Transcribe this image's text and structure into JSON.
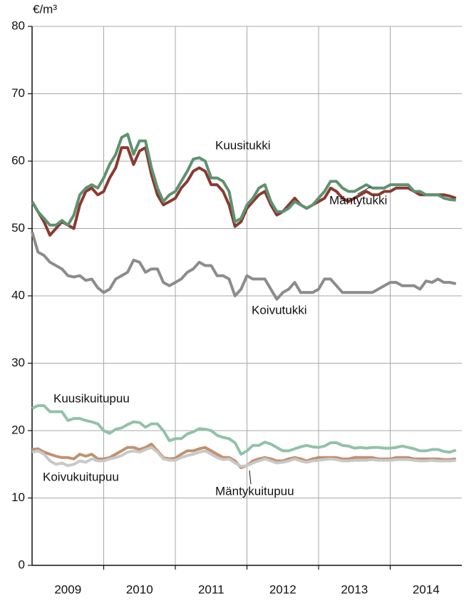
{
  "chart_data": {
    "type": "line",
    "y_unit": "€/m³",
    "x": [
      2009,
      2009.083,
      2009.167,
      2009.25,
      2009.333,
      2009.417,
      2009.5,
      2009.583,
      2009.667,
      2009.75,
      2009.833,
      2009.917,
      2010,
      2010.083,
      2010.167,
      2010.25,
      2010.333,
      2010.417,
      2010.5,
      2010.583,
      2010.667,
      2010.75,
      2010.833,
      2010.917,
      2011,
      2011.083,
      2011.167,
      2011.25,
      2011.333,
      2011.417,
      2011.5,
      2011.583,
      2011.667,
      2011.75,
      2011.833,
      2011.917,
      2012,
      2012.083,
      2012.167,
      2012.25,
      2012.333,
      2012.417,
      2012.5,
      2012.583,
      2012.667,
      2012.75,
      2012.833,
      2012.917,
      2013,
      2013.083,
      2013.167,
      2013.25,
      2013.333,
      2013.417,
      2013.5,
      2013.583,
      2013.667,
      2013.75,
      2013.833,
      2013.917,
      2014,
      2014.083,
      2014.167,
      2014.25,
      2014.333,
      2014.417,
      2014.5,
      2014.583,
      2014.667,
      2014.75,
      2014.833,
      2014.917
    ],
    "series": [
      {
        "name": "Kuusitukki",
        "color": "#5e9270",
        "values": [
          54,
          52.5,
          51.5,
          50.5,
          50.5,
          51.2,
          50.5,
          52,
          55,
          56,
          56.5,
          56,
          57.5,
          59.5,
          61,
          63.5,
          64,
          61,
          63,
          63,
          59,
          56,
          54,
          55,
          55.5,
          57,
          58.5,
          60.3,
          60.5,
          60,
          57.5,
          57.5,
          57,
          55.5,
          51,
          51.5,
          53.5,
          54.5,
          56,
          56.5,
          54,
          52.5,
          52.5,
          53,
          54,
          53.5,
          53,
          53.5,
          54.5,
          55.5,
          57,
          57,
          56,
          55.5,
          55.5,
          56,
          56.5,
          56,
          56,
          56,
          56.5,
          56.5,
          56.5,
          56.5,
          55.5,
          55.5,
          55,
          55,
          55,
          54.5,
          54.3,
          54.2
        ]
      },
      {
        "name": "Mäntytukki",
        "color": "#8a3a30",
        "values": [
          54,
          52.5,
          51,
          49,
          50,
          51,
          50.5,
          50,
          53.5,
          55.5,
          56,
          55,
          55.5,
          57.5,
          59,
          62,
          62,
          59.5,
          61.5,
          62,
          58,
          55,
          53.5,
          54,
          54.5,
          56,
          57,
          58.5,
          59,
          58.5,
          56.5,
          56.5,
          55.5,
          53.5,
          50.3,
          51,
          53,
          54,
          55,
          55.5,
          53.5,
          52,
          52.5,
          53.5,
          54.5,
          53.5,
          53,
          53.5,
          54,
          54.5,
          56,
          55.5,
          54.5,
          54,
          54.5,
          55,
          55.5,
          55,
          55,
          55.5,
          55.5,
          56,
          56,
          56,
          55.5,
          55,
          55,
          55,
          55,
          55,
          54.8,
          54.5
        ]
      },
      {
        "name": "Koivutukki",
        "color": "#8c8c8c",
        "values": [
          49.5,
          46.5,
          46,
          45,
          44.5,
          44,
          43,
          42.8,
          43,
          42.3,
          42.5,
          41.2,
          40.5,
          41,
          42.5,
          43,
          43.5,
          45.3,
          45,
          43.5,
          44,
          44,
          42,
          41.5,
          42,
          42.5,
          43.5,
          44,
          45,
          44.5,
          44.5,
          43,
          43,
          42.5,
          40,
          41,
          43,
          42.5,
          42.5,
          42.5,
          41,
          39.5,
          40.5,
          41,
          42,
          40.5,
          40.5,
          40.5,
          41,
          42.5,
          42.5,
          41.5,
          40.5,
          40.5,
          40.5,
          40.5,
          40.5,
          40.5,
          41,
          41.5,
          42,
          42,
          41.5,
          41.5,
          41.5,
          41,
          42.2,
          42,
          42.5,
          42,
          42,
          41.8
        ]
      },
      {
        "name": "Kuusikuitupuu",
        "color": "#92c2a8",
        "values": [
          23.3,
          23.7,
          23.7,
          22.8,
          22.8,
          22.8,
          21.5,
          21.8,
          21.8,
          21.5,
          21.3,
          21,
          20,
          19.6,
          20.2,
          20.4,
          20.9,
          21.3,
          21.2,
          20.5,
          21,
          21,
          20,
          18.5,
          18.8,
          18.8,
          19.5,
          19.8,
          20.3,
          20.2,
          20,
          19.3,
          19,
          18.8,
          18.2,
          16.5,
          17,
          17.8,
          17.8,
          18.3,
          18,
          17.5,
          17,
          17,
          17.3,
          17.6,
          17.8,
          17.6,
          17.5,
          17.7,
          18.2,
          18.2,
          17.8,
          17.7,
          17.4,
          17.5,
          17.4,
          17.5,
          17.5,
          17.4,
          17.4,
          17.5,
          17.7,
          17.5,
          17.3,
          17,
          17,
          17.2,
          17.2,
          16.9,
          16.8,
          17.1
        ]
      },
      {
        "name": "Mäntykuitupuu",
        "color": "#c2906f",
        "values": [
          17.2,
          17.3,
          16.8,
          16.5,
          16.2,
          16,
          16,
          15.8,
          16.5,
          16.2,
          16.5,
          15.8,
          15.8,
          16,
          16.5,
          17,
          17.5,
          17.5,
          17.2,
          17.5,
          18,
          17,
          16,
          15.8,
          15.9,
          16.5,
          17,
          17,
          17.3,
          17.5,
          17,
          16.5,
          16,
          16,
          15.5,
          14.5,
          14.8,
          15.5,
          15.8,
          16,
          15.8,
          15.5,
          15.5,
          15.8,
          16,
          15.8,
          15.5,
          15.8,
          16,
          16,
          16,
          16,
          15.8,
          15.8,
          16,
          16,
          16,
          16,
          15.8,
          15.8,
          15.8,
          16,
          16,
          16,
          15.8,
          15.8,
          15.8,
          15.8,
          15.8,
          15.7,
          15.7,
          15.8
        ]
      },
      {
        "name": "Koivukuitupuu",
        "color": "#c8c8c8",
        "values": [
          16.8,
          17,
          16.5,
          15.5,
          15,
          15.2,
          14.8,
          15,
          15.5,
          15.3,
          15.8,
          15.5,
          15.5,
          15.8,
          16,
          16.3,
          16.8,
          17,
          16.8,
          17.2,
          17.5,
          16.8,
          15.8,
          15.6,
          15.6,
          16,
          16.3,
          16.5,
          16.8,
          17,
          16.5,
          16,
          15.7,
          15.8,
          15.2,
          14.7,
          14.8,
          15.2,
          15.5,
          15.8,
          15.5,
          15.2,
          15.3,
          15.5,
          15.8,
          15.5,
          15.3,
          15.5,
          15.6,
          15.7,
          15.8,
          15.7,
          15.5,
          15.5,
          15.6,
          15.6,
          15.6,
          15.7,
          15.6,
          15.6,
          15.6,
          15.7,
          15.7,
          15.7,
          15.6,
          15.5,
          15.5,
          15.6,
          15.5,
          15.5,
          15.5,
          15.6
        ]
      }
    ],
    "xlim": [
      2009,
      2015
    ],
    "xticks": [
      {
        "value": 2009.5,
        "label": "2009"
      },
      {
        "value": 2010.5,
        "label": "2010"
      },
      {
        "value": 2011.5,
        "label": "2011"
      },
      {
        "value": 2012.5,
        "label": "2012"
      },
      {
        "value": 2013.5,
        "label": "2013"
      },
      {
        "value": 2014.5,
        "label": "2014"
      }
    ],
    "xgrid": [
      2010,
      2011,
      2012,
      2013,
      2014
    ],
    "ylim": [
      0,
      80
    ],
    "yticks": [
      0,
      10,
      20,
      30,
      40,
      50,
      60,
      70,
      80
    ],
    "grid": true
  }
}
